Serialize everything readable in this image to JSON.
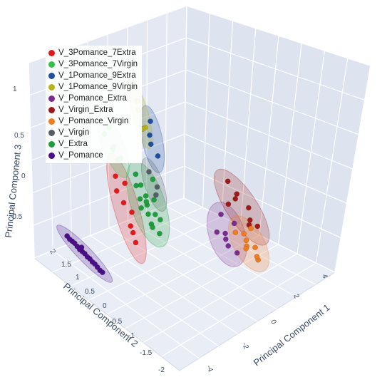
{
  "chart_data": {
    "type": "scatter",
    "dimensions": 3,
    "xlabel": "Principal Component 1",
    "ylabel": "Principal Component 2",
    "zlabel": "Principal Component 3",
    "x_ticks": [
      "-4",
      "-2",
      "0",
      "2",
      "4"
    ],
    "y_ticks": [
      "-2",
      "-1.5",
      "-1",
      "-0.5",
      "0",
      "0.5",
      "1",
      "1.5",
      "2"
    ],
    "z_ticks": [
      "-0.5",
      "0",
      "0.5",
      "1"
    ],
    "legend_position": "top-left",
    "confidence_ellipsoids": true,
    "series": [
      {
        "name": "V_3Pomance_7Extra",
        "color": "#e31a1c",
        "points": [
          [
            -1.6,
            0.9,
            0.25
          ],
          [
            -1.5,
            1.0,
            0.1
          ],
          [
            -1.4,
            0.8,
            0.0
          ],
          [
            -1.7,
            1.1,
            0.2
          ],
          [
            -1.3,
            0.9,
            -0.1
          ],
          [
            -1.5,
            0.7,
            -0.2
          ],
          [
            -1.6,
            1.2,
            0.35
          ],
          [
            -1.2,
            0.8,
            -0.25
          ]
        ]
      },
      {
        "name": "V_3Pomance_7Virgin",
        "color": "#33c14d",
        "points": [
          [
            -1.9,
            1.1,
            0.55
          ],
          [
            -2.0,
            1.3,
            0.7
          ],
          [
            -1.7,
            1.2,
            0.6
          ],
          [
            -1.8,
            1.0,
            0.45
          ],
          [
            -1.6,
            1.4,
            0.8
          ],
          [
            -1.5,
            1.1,
            0.5
          ]
        ]
      },
      {
        "name": "V_1Pomance_9Extra",
        "color": "#1f4e9e",
        "points": [
          [
            -0.8,
            0.6,
            0.7
          ],
          [
            -0.6,
            0.7,
            0.85
          ],
          [
            -0.9,
            0.5,
            0.6
          ],
          [
            -0.7,
            0.4,
            0.5
          ]
        ]
      },
      {
        "name": "V_1Pomance_9Virgin",
        "color": "#b5b319",
        "points": [
          [
            -0.9,
            0.9,
            0.95
          ],
          [
            -0.7,
            0.8,
            0.8
          ],
          [
            -1.0,
            0.7,
            0.75
          ],
          [
            -0.8,
            1.0,
            1.05
          ]
        ]
      },
      {
        "name": "V_Pomance_Extra",
        "color": "#7b2d8e",
        "points": [
          [
            1.2,
            -0.6,
            -0.2
          ],
          [
            1.5,
            -0.4,
            -0.1
          ],
          [
            1.0,
            -0.8,
            -0.3
          ],
          [
            1.8,
            -0.5,
            0.0
          ],
          [
            1.3,
            -0.9,
            -0.35
          ],
          [
            1.6,
            -0.2,
            0.1
          ],
          [
            0.9,
            -0.5,
            -0.15
          ]
        ]
      },
      {
        "name": "V_Virgin_Extra",
        "color": "#9e1a1a",
        "points": [
          [
            3.0,
            0.2,
            0.4
          ],
          [
            3.4,
            0.4,
            0.5
          ],
          [
            3.2,
            -0.1,
            0.3
          ],
          [
            3.6,
            0.1,
            0.25
          ],
          [
            2.8,
            0.3,
            0.35
          ],
          [
            3.5,
            -0.2,
            0.15
          ],
          [
            3.1,
            0.5,
            0.6
          ],
          [
            2.9,
            -0.3,
            0.1
          ]
        ]
      },
      {
        "name": "V_Pomance_Virgin",
        "color": "#f07c1f",
        "points": [
          [
            1.8,
            -0.9,
            -0.25
          ],
          [
            2.1,
            -0.7,
            -0.15
          ],
          [
            1.6,
            -1.0,
            -0.3
          ],
          [
            2.3,
            -0.5,
            -0.05
          ],
          [
            1.9,
            -1.2,
            -0.4
          ],
          [
            2.4,
            -0.8,
            -0.2
          ],
          [
            1.7,
            -0.6,
            -0.1
          ],
          [
            2.0,
            -1.1,
            -0.35
          ],
          [
            2.5,
            -0.6,
            0.0
          ]
        ]
      },
      {
        "name": "V_Virgin",
        "color": "#555e66",
        "points": [
          [
            -0.9,
            0.3,
            0.2
          ],
          [
            -1.0,
            0.5,
            0.35
          ],
          [
            -0.8,
            0.4,
            0.15
          ]
        ]
      },
      {
        "name": "V_Extra",
        "color": "#1e9e3c",
        "points": [
          [
            -1.3,
            0.6,
            0.1
          ],
          [
            -1.1,
            0.5,
            0.05
          ],
          [
            -1.2,
            0.4,
            -0.05
          ],
          [
            -1.0,
            0.6,
            0.15
          ],
          [
            -1.4,
            0.5,
            0.0
          ],
          [
            -0.9,
            0.2,
            -0.1
          ],
          [
            -1.2,
            0.3,
            -0.15
          ],
          [
            -1.1,
            0.7,
            0.25
          ],
          [
            -1.3,
            0.2,
            -0.2
          ],
          [
            -1.0,
            0.3,
            -0.05
          ],
          [
            -0.8,
            0.5,
            0.3
          ],
          [
            -1.2,
            0.8,
            0.35
          ],
          [
            -1.5,
            0.6,
            0.2
          ],
          [
            -1.1,
            0.1,
            -0.25
          ],
          [
            -0.9,
            0.4,
            0.1
          ],
          [
            -1.3,
            0.4,
            0.05
          ]
        ]
      },
      {
        "name": "V_Pomance",
        "color": "#4b0f8a",
        "points": [
          [
            -3.2,
            1.6,
            -0.3
          ],
          [
            -3.1,
            1.5,
            -0.35
          ],
          [
            -3.0,
            1.4,
            -0.4
          ],
          [
            -2.9,
            1.3,
            -0.45
          ],
          [
            -3.3,
            1.7,
            -0.25
          ],
          [
            -2.8,
            1.2,
            -0.5
          ],
          [
            -2.7,
            1.1,
            -0.55
          ],
          [
            -3.15,
            1.55,
            -0.32
          ],
          [
            -3.05,
            1.45,
            -0.38
          ],
          [
            -2.95,
            1.35,
            -0.42
          ],
          [
            -2.85,
            1.25,
            -0.47
          ],
          [
            -2.75,
            1.15,
            -0.52
          ],
          [
            -3.25,
            1.65,
            -0.28
          ],
          [
            -2.65,
            1.05,
            -0.58
          ],
          [
            -2.6,
            1.0,
            -0.6
          ],
          [
            -3.0,
            1.42,
            -0.36
          ]
        ]
      }
    ]
  }
}
